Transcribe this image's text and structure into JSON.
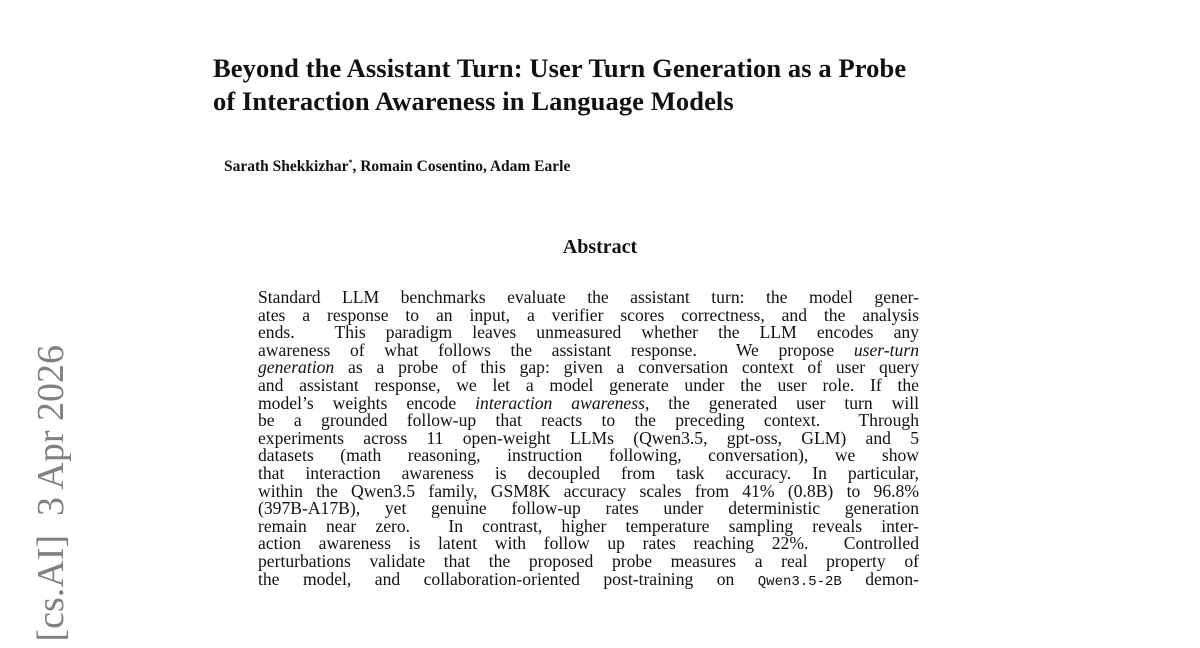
{
  "title": [
    "Beyond the Assistant Turn: User Turn Generation as a Probe",
    "of Interaction Awareness in Language Models"
  ],
  "authors": {
    "first": "Sarath Shekkizhar",
    "mark": "*",
    "rest": ", Romain Cosentino, Adam Earle"
  },
  "abstract_heading": "Abstract",
  "side_stamp": "[cs.AI]  3 Apr 2026",
  "abstract": {
    "l1": "Standard LLM benchmarks evaluate the assistant turn: the model gener-",
    "l2": "ates a response to an input, a verifier scores correctness, and the analysis",
    "l3": "ends.  This paradigm leaves unmeasured whether the LLM encodes any",
    "l4a": "awareness of what follows the assistant response.  We propose ",
    "l4b": "user-turn",
    "l5a": "generation",
    "l5b": " as a probe of this gap: given a conversation context of user query",
    "l6": "and assistant response, we let a model generate under the user role. If the",
    "l7a": "model’s weights encode ",
    "l7b": "interaction awareness",
    "l7c": ", the generated user turn will",
    "l8": "be a grounded follow-up that reacts to the preceding context.  Through",
    "l9": "experiments across 11 open-weight LLMs (Qwen3.5, gpt-oss, GLM) and 5",
    "l10": "datasets (math reasoning, instruction following, conversation), we show",
    "l11": "that interaction awareness is decoupled from task accuracy. In particular,",
    "l12": "within the Qwen3.5 family, GSM8K accuracy scales from 41% (0.8B) to 96.8%",
    "l13": "(397B-A17B), yet genuine follow-up rates under deterministic generation",
    "l14": "remain near zero.  In contrast, higher temperature sampling reveals inter-",
    "l15": "action awareness is latent with follow up rates reaching 22%.  Controlled",
    "l16": "perturbations validate that the proposed probe measures a real property of",
    "l17a": "the model, and collaboration-oriented post-training on ",
    "l17b": "Qwen3.5-2B",
    "l17c": " demon-"
  }
}
